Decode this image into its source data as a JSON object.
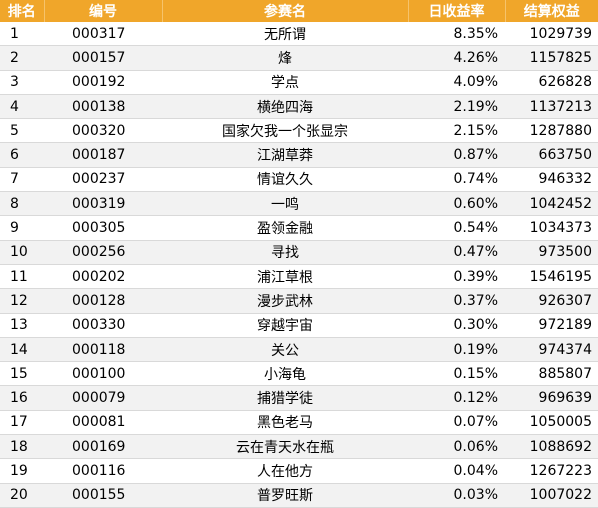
{
  "table": {
    "headers": {
      "rank": "排名",
      "code": "编号",
      "name": "参赛名",
      "daily_return": "日收益率",
      "equity": "结算权益"
    },
    "rows": [
      {
        "rank": "1",
        "code": "000317",
        "name": "无所谓",
        "daily_return": "8.35%",
        "equity": "1029739"
      },
      {
        "rank": "2",
        "code": "000157",
        "name": "烽",
        "daily_return": "4.26%",
        "equity": "1157825"
      },
      {
        "rank": "3",
        "code": "000192",
        "name": "学点",
        "daily_return": "4.09%",
        "equity": "626828"
      },
      {
        "rank": "4",
        "code": "000138",
        "name": "横绝四海",
        "daily_return": "2.19%",
        "equity": "1137213"
      },
      {
        "rank": "5",
        "code": "000320",
        "name": "国家欠我一个张显宗",
        "daily_return": "2.15%",
        "equity": "1287880"
      },
      {
        "rank": "6",
        "code": "000187",
        "name": "江湖草莽",
        "daily_return": "0.87%",
        "equity": "663750"
      },
      {
        "rank": "7",
        "code": "000237",
        "name": "情谊久久",
        "daily_return": "0.74%",
        "equity": "946332"
      },
      {
        "rank": "8",
        "code": "000319",
        "name": "一鸣",
        "daily_return": "0.60%",
        "equity": "1042452"
      },
      {
        "rank": "9",
        "code": "000305",
        "name": "盈领金融",
        "daily_return": "0.54%",
        "equity": "1034373"
      },
      {
        "rank": "10",
        "code": "000256",
        "name": "寻找",
        "daily_return": "0.47%",
        "equity": "973500"
      },
      {
        "rank": "11",
        "code": "000202",
        "name": "浦江草根",
        "daily_return": "0.39%",
        "equity": "1546195"
      },
      {
        "rank": "12",
        "code": "000128",
        "name": "漫步武林",
        "daily_return": "0.37%",
        "equity": "926307"
      },
      {
        "rank": "13",
        "code": "000330",
        "name": "穿越宇宙",
        "daily_return": "0.30%",
        "equity": "972189"
      },
      {
        "rank": "14",
        "code": "000118",
        "name": "关公",
        "daily_return": "0.19%",
        "equity": "974374"
      },
      {
        "rank": "15",
        "code": "000100",
        "name": "小海龟",
        "daily_return": "0.15%",
        "equity": "885807"
      },
      {
        "rank": "16",
        "code": "000079",
        "name": "捕猎学徒",
        "daily_return": "0.12%",
        "equity": "969639"
      },
      {
        "rank": "17",
        "code": "000081",
        "name": "黑色老马",
        "daily_return": "0.07%",
        "equity": "1050005"
      },
      {
        "rank": "18",
        "code": "000169",
        "name": "云在青天水在瓶",
        "daily_return": "0.06%",
        "equity": "1088692"
      },
      {
        "rank": "19",
        "code": "000116",
        "name": "人在他方",
        "daily_return": "0.04%",
        "equity": "1267223"
      },
      {
        "rank": "20",
        "code": "000155",
        "name": "普罗旺斯",
        "daily_return": "0.03%",
        "equity": "1007022"
      }
    ]
  },
  "colors": {
    "header_bg": "#f0a62a",
    "header_text": "#ffffff",
    "row_alt_bg": "#f2f2f2"
  }
}
